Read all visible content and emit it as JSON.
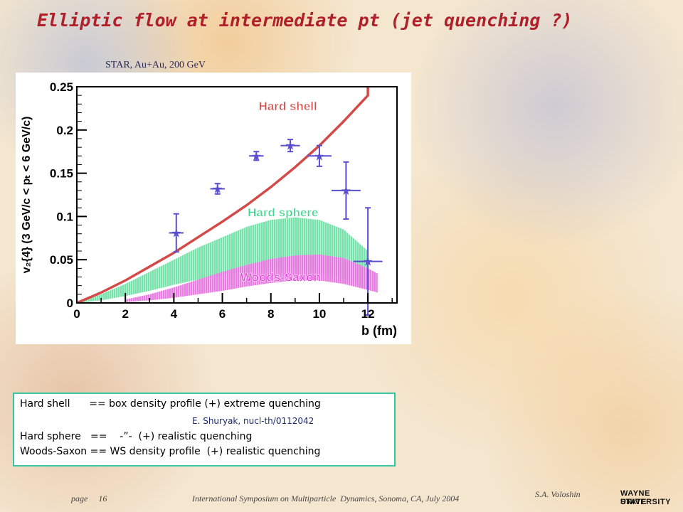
{
  "slide": {
    "title": "Elliptic flow at intermediate pt (jet quenching ?)",
    "subtitle": "STAR, Au+Au, 200 GeV"
  },
  "chart_data": {
    "type": "scatter",
    "xlabel": "b (fm)",
    "ylabel": "v₂{4} (3 GeV/c < pₜ < 6 GeV/c)",
    "xlim": [
      0,
      13.2
    ],
    "ylim": [
      0,
      0.25
    ],
    "x_ticks": [
      "0",
      "2",
      "4",
      "6",
      "8",
      "10",
      "12"
    ],
    "y_ticks": [
      "0",
      "0.05",
      "0.1",
      "0.15",
      "0.2",
      "0.25"
    ],
    "grid": false,
    "series": [
      {
        "name": "STAR, Au+Au, 200 GeV",
        "kind": "points",
        "color": "#5a4fd0",
        "x": [
          4.1,
          5.8,
          7.4,
          8.8,
          10.0,
          11.1,
          12.0
        ],
        "y": [
          0.081,
          0.132,
          0.17,
          0.182,
          0.17,
          0.13,
          0.048
        ],
        "yerr": [
          0.022,
          0.006,
          0.005,
          0.007,
          0.012,
          0.033,
          0.062
        ],
        "xerr": [
          0.3,
          0.3,
          0.3,
          0.4,
          0.5,
          0.6,
          0.6
        ]
      },
      {
        "name": "Hard shell",
        "kind": "line",
        "color": "#d44a48",
        "x": [
          0,
          1,
          2,
          3,
          4,
          5,
          6,
          7,
          8,
          9,
          10,
          11,
          12,
          12.0
        ],
        "y": [
          0,
          0.012,
          0.026,
          0.042,
          0.058,
          0.076,
          0.094,
          0.113,
          0.134,
          0.157,
          0.182,
          0.21,
          0.24,
          0.25
        ]
      },
      {
        "name": "Hard sphere",
        "kind": "band",
        "color": "#3ed88e",
        "x": [
          0,
          1,
          2,
          3,
          4,
          5,
          6,
          7,
          8,
          9,
          10,
          11,
          12
        ],
        "y_low": [
          0,
          0.003,
          0.008,
          0.014,
          0.021,
          0.027,
          0.032,
          0.036,
          0.038,
          0.038,
          0.035,
          0.028,
          0.016
        ],
        "y_high": [
          0,
          0.01,
          0.022,
          0.036,
          0.05,
          0.064,
          0.076,
          0.088,
          0.096,
          0.099,
          0.096,
          0.085,
          0.06
        ]
      },
      {
        "name": "Woods-Saxon",
        "kind": "band",
        "color": "#e048d8",
        "x": [
          2,
          3,
          4,
          5,
          6,
          7,
          8,
          9,
          10,
          11,
          12,
          12.4
        ],
        "y_low": [
          0.001,
          0.003,
          0.006,
          0.01,
          0.014,
          0.019,
          0.023,
          0.026,
          0.026,
          0.022,
          0.015,
          0.012
        ],
        "y_high": [
          0.004,
          0.01,
          0.018,
          0.027,
          0.036,
          0.044,
          0.051,
          0.055,
          0.056,
          0.052,
          0.04,
          0.034
        ]
      }
    ],
    "annotations": [
      {
        "text": "Hard shell",
        "x": 8.7,
        "y": 0.223,
        "color": "#d44a48"
      },
      {
        "text": "Hard sphere",
        "x": 8.5,
        "y": 0.1,
        "color": "#3ed88e"
      },
      {
        "text": "Woods-Saxon",
        "x": 8.4,
        "y": 0.025,
        "color": "#e048d8"
      }
    ]
  },
  "notes": {
    "line1": "Hard shell      == box density profile (+) extreme quenching",
    "ref": "E. Shuryak, nucl-th/0112042",
    "line2": "Hard sphere   ==    -”-  (+) realistic quenching",
    "line3": "Woods-Saxon == WS density profile  (+) realistic quenching"
  },
  "footer": {
    "page": "page     16",
    "conference": "International Symposium on Multiparticle  Dynamics, Sonoma, CA, July 2004",
    "author": "S.A. Voloshin"
  },
  "logo": {
    "line1": "WAYNE STATE",
    "line2": "UNIVERSITY"
  }
}
